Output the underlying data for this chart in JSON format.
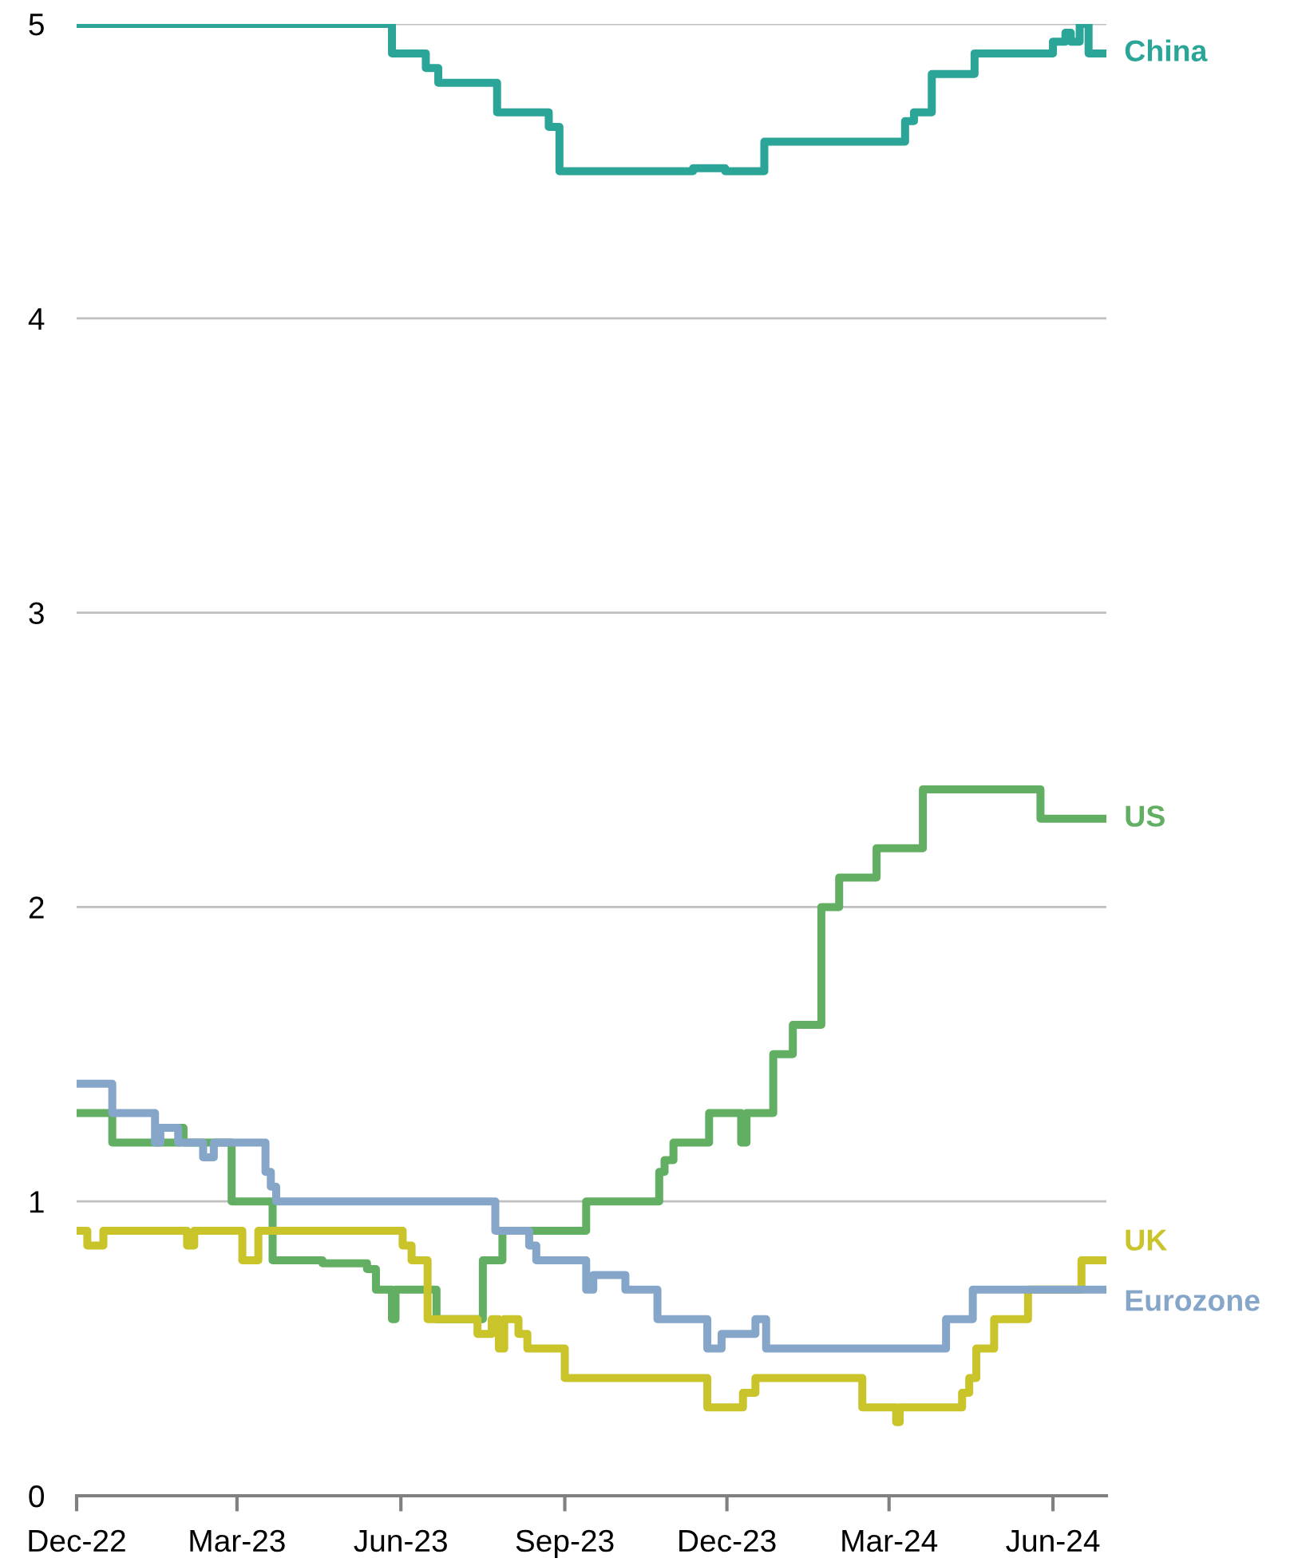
{
  "chart_data": {
    "type": "step",
    "xlim": [
      "2022-12-01",
      "2024-07-01"
    ],
    "xticks": [
      {
        "value": "2022-12-01",
        "label": "Dec-22"
      },
      {
        "value": "2023-03-01",
        "label": "Mar-23"
      },
      {
        "value": "2023-06-01",
        "label": "Jun-23"
      },
      {
        "value": "2023-09-01",
        "label": "Sep-23"
      },
      {
        "value": "2023-12-01",
        "label": "Dec-23"
      },
      {
        "value": "2024-03-01",
        "label": "Mar-24"
      },
      {
        "value": "2024-06-01",
        "label": "Jun-24"
      }
    ],
    "ylim": [
      0,
      5
    ],
    "yticks": [
      0,
      1,
      2,
      3,
      4,
      5
    ],
    "grid": "y",
    "legend": false,
    "line_style": "solid",
    "series": [
      {
        "name": "China",
        "color": "#2aa597",
        "x": [
          "2022-12-01",
          "2023-05-27",
          "2023-06-15",
          "2023-06-22",
          "2023-07-25",
          "2023-08-23",
          "2023-08-29",
          "2023-11-12",
          "2023-11-30",
          "2023-12-22",
          "2024-03-10",
          "2024-03-15",
          "2024-03-25",
          "2024-04-18",
          "2024-06-01",
          "2024-06-08",
          "2024-06-11",
          "2024-06-16",
          "2024-06-21",
          "2024-07-01"
        ],
        "values": [
          5.0,
          4.9,
          4.85,
          4.8,
          4.7,
          4.65,
          4.5,
          4.51,
          4.5,
          4.6,
          4.67,
          4.7,
          4.83,
          4.9,
          4.94,
          4.97,
          4.94,
          5.0,
          4.9,
          4.9
        ]
      },
      {
        "name": "US",
        "color": "#62ae62",
        "x": [
          "2022-12-01",
          "2022-12-21",
          "2023-01-28",
          "2023-01-30",
          "2023-02-26",
          "2023-03-21",
          "2023-04-18",
          "2023-05-13",
          "2023-05-18",
          "2023-05-27",
          "2023-05-29",
          "2023-06-21",
          "2023-07-17",
          "2023-07-28",
          "2023-09-13",
          "2023-10-24",
          "2023-10-27",
          "2023-11-01",
          "2023-11-21",
          "2023-12-09",
          "2023-12-12",
          "2023-12-27",
          "2024-01-07",
          "2024-01-23",
          "2024-02-02",
          "2024-02-23",
          "2024-03-20",
          "2024-05-25",
          "2024-07-01"
        ],
        "values": [
          1.3,
          1.2,
          1.25,
          1.2,
          1.0,
          0.8,
          0.79,
          0.77,
          0.7,
          0.6,
          0.7,
          0.6,
          0.8,
          0.9,
          1.0,
          1.1,
          1.14,
          1.2,
          1.3,
          1.2,
          1.3,
          1.5,
          1.6,
          2.0,
          2.1,
          2.2,
          2.4,
          2.3,
          2.3
        ]
      },
      {
        "name": "UK",
        "color": "#c8c42a",
        "x": [
          "2022-12-01",
          "2022-12-07",
          "2022-12-16",
          "2023-02-01",
          "2023-02-05",
          "2023-03-04",
          "2023-03-13",
          "2023-06-02",
          "2023-06-07",
          "2023-06-16",
          "2023-07-14",
          "2023-07-22",
          "2023-07-26",
          "2023-07-29",
          "2023-08-06",
          "2023-08-11",
          "2023-09-01",
          "2023-11-20",
          "2023-12-10",
          "2023-12-17",
          "2024-02-15",
          "2024-03-05",
          "2024-03-07",
          "2024-04-11",
          "2024-04-15",
          "2024-04-19",
          "2024-04-29",
          "2024-05-18",
          "2024-06-17",
          "2024-07-01"
        ],
        "values": [
          0.9,
          0.85,
          0.9,
          0.85,
          0.9,
          0.8,
          0.9,
          0.85,
          0.8,
          0.6,
          0.55,
          0.6,
          0.5,
          0.6,
          0.55,
          0.5,
          0.4,
          0.3,
          0.35,
          0.4,
          0.3,
          0.25,
          0.3,
          0.35,
          0.4,
          0.5,
          0.6,
          0.7,
          0.8,
          0.8
        ]
      },
      {
        "name": "Eurozone",
        "color": "#86a6c9",
        "x": [
          "2022-12-01",
          "2022-12-21",
          "2023-01-14",
          "2023-01-17",
          "2023-01-27",
          "2023-02-06",
          "2023-02-10",
          "2023-02-16",
          "2023-03-17",
          "2023-03-20",
          "2023-03-23",
          "2023-07-24",
          "2023-08-12",
          "2023-08-16",
          "2023-09-13",
          "2023-09-17",
          "2023-09-20",
          "2023-10-05",
          "2023-10-23",
          "2023-11-20",
          "2023-11-28",
          "2023-12-17",
          "2023-12-23",
          "2024-04-02",
          "2024-04-17",
          "2024-07-01"
        ],
        "values": [
          1.4,
          1.3,
          1.2,
          1.25,
          1.2,
          1.2,
          1.15,
          1.2,
          1.1,
          1.05,
          1.0,
          0.9,
          0.85,
          0.8,
          0.7,
          0.75,
          0.75,
          0.7,
          0.6,
          0.5,
          0.55,
          0.6,
          0.5,
          0.6,
          0.7,
          0.7
        ]
      }
    ]
  }
}
